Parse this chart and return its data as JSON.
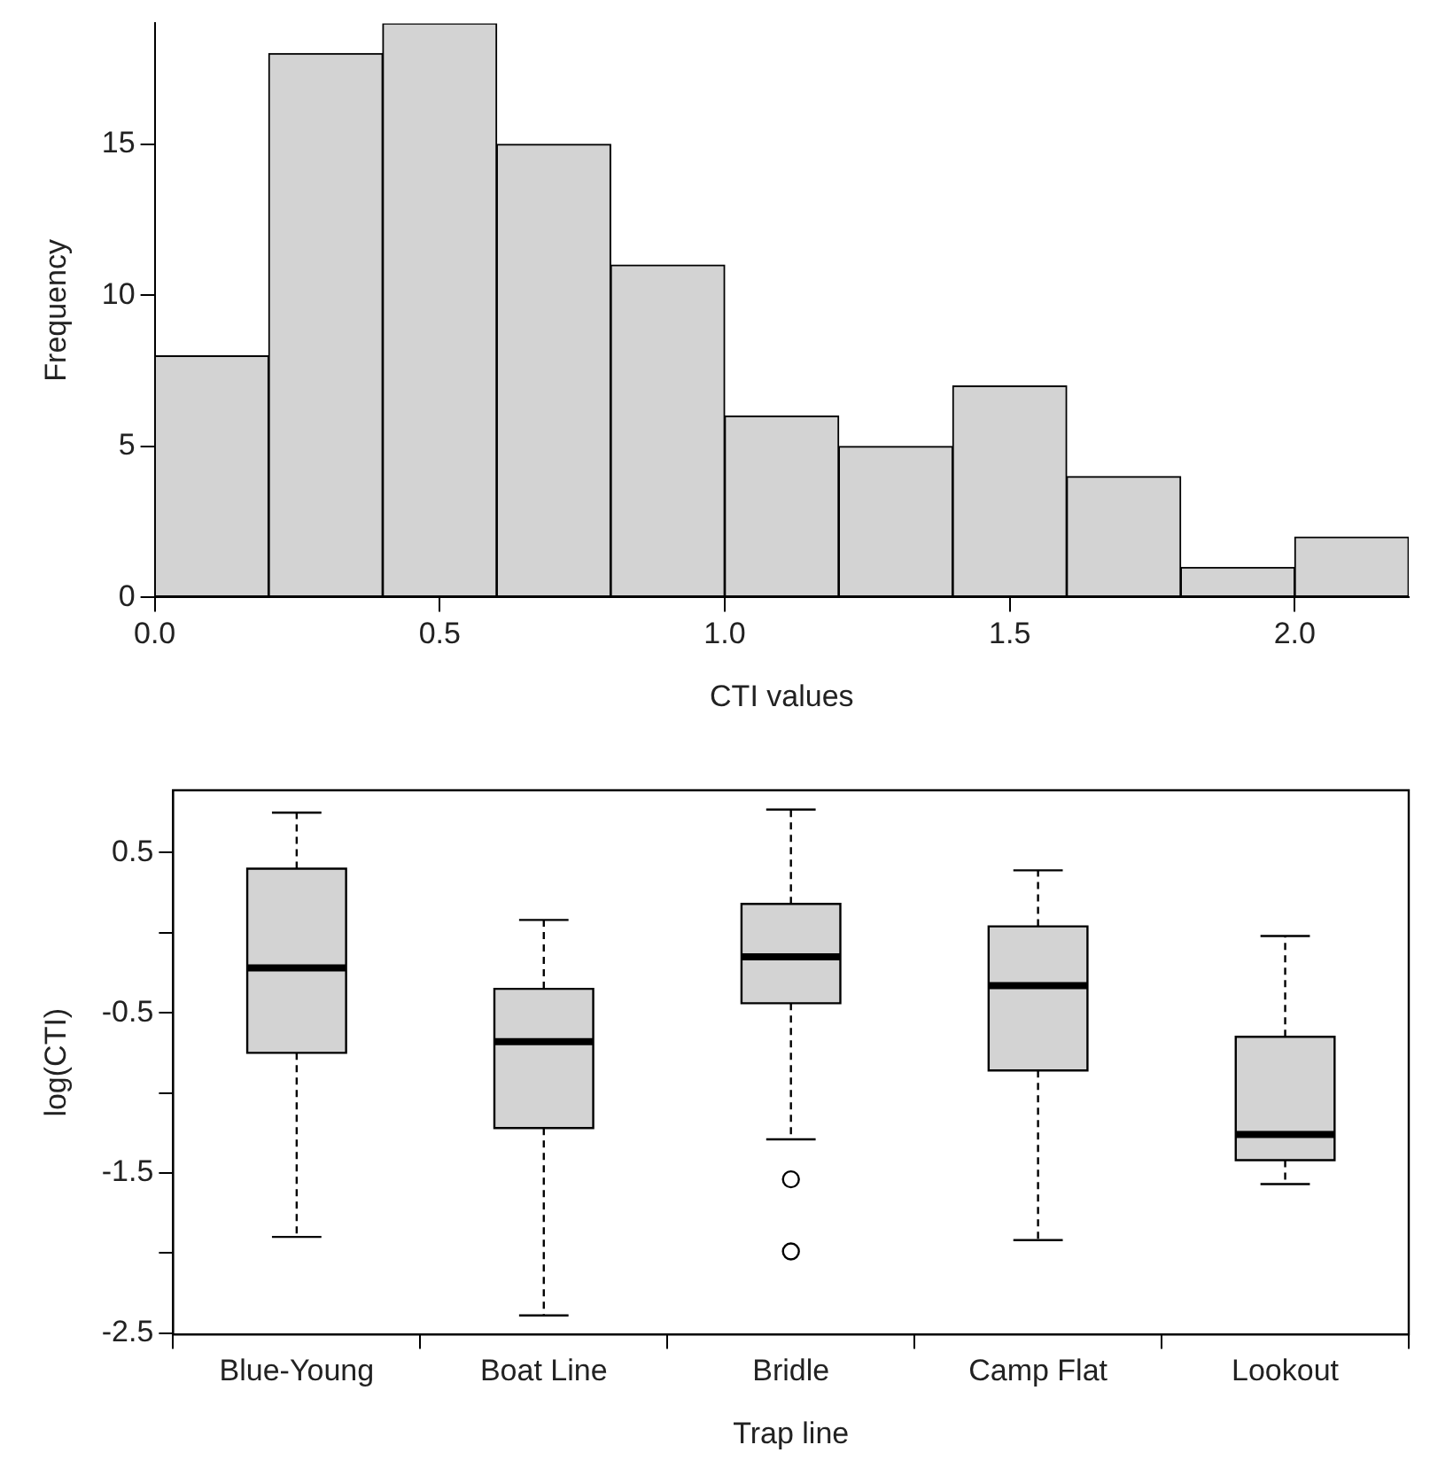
{
  "chart_data": [
    {
      "type": "histogram",
      "bins": [
        0,
        0.2,
        0.4,
        0.6,
        0.8,
        1.0,
        1.2,
        1.4,
        1.6,
        1.8,
        2.0,
        2.2
      ],
      "values": [
        8,
        18,
        19,
        15,
        11,
        6,
        5,
        7,
        4,
        1,
        2
      ],
      "color": "#d3d3d3",
      "xlabel": "CTI values",
      "ylabel": "Frequency",
      "xlim": [
        0,
        2.2
      ],
      "xticks": [
        {
          "value": 0,
          "label": "0.0"
        },
        {
          "value": 0.5,
          "label": "0.5"
        },
        {
          "value": 1,
          "label": "1.0"
        },
        {
          "value": 1.5,
          "label": "1.5"
        },
        {
          "value": 2,
          "label": "2.0"
        }
      ],
      "ylim": [
        0,
        19
      ],
      "yticks": [
        0,
        5,
        10,
        15
      ],
      "grid": false
    },
    {
      "type": "box",
      "categories": [
        "Blue-Young",
        "Boat Line",
        "Bridle",
        "Camp Flat",
        "Lookout"
      ],
      "color": "#d3d3d3",
      "xlabel": "Trap line",
      "ylabel": "log(CTI)",
      "ylim": [
        -2.51,
        0.89
      ],
      "yticks": [
        -2.5,
        {
          "value": -2,
          "label": null
        },
        -1.5,
        {
          "value": -1,
          "label": null
        },
        -0.5,
        {
          "value": 0,
          "label": null
        },
        0.5
      ],
      "grid": false,
      "boxes": [
        {
          "low": -1.9,
          "q1": -0.75,
          "median": -0.22,
          "q3": 0.4,
          "high": 0.75
        },
        {
          "low": -2.39,
          "q1": -1.22,
          "median": -0.68,
          "q3": -0.35,
          "high": 0.08
        },
        {
          "low": -1.29,
          "q1": -0.44,
          "median": -0.15,
          "q3": 0.18,
          "high": 0.77,
          "outliers": [
            -1.54,
            -1.99
          ]
        },
        {
          "low": -1.92,
          "q1": -0.86,
          "median": -0.33,
          "q3": 0.04,
          "high": 0.39
        },
        {
          "low": -1.57,
          "q1": -1.42,
          "median": -1.26,
          "q3": -0.65,
          "high": -0.02
        }
      ]
    }
  ]
}
